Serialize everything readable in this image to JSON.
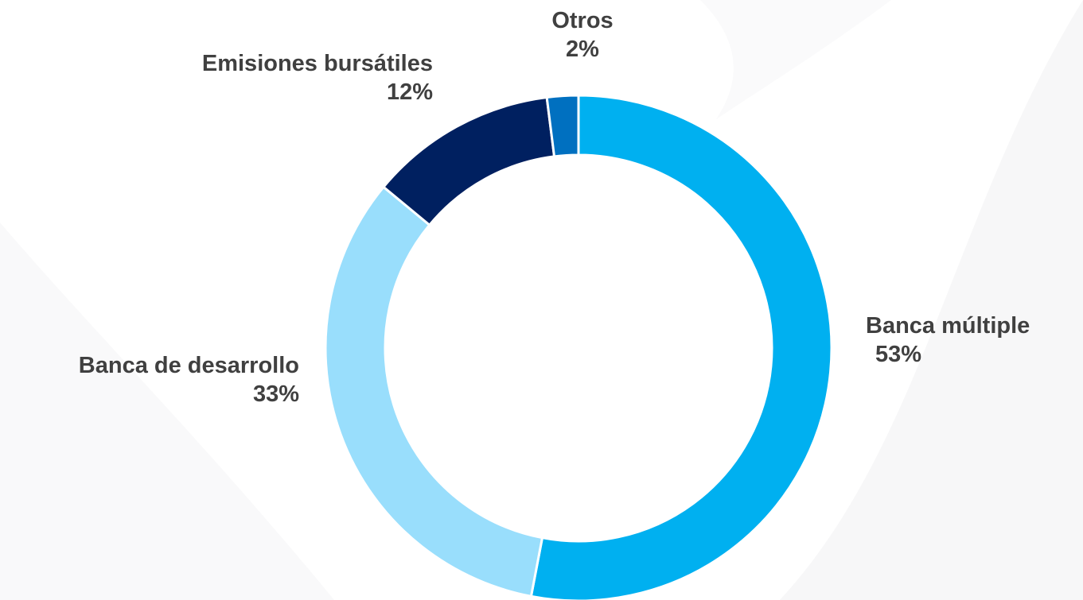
{
  "chart_data": {
    "type": "pie",
    "donut": true,
    "title": "",
    "legend": "none",
    "slices": [
      {
        "label": "Banca múltiple",
        "value": 53,
        "display": "53%",
        "color": "#00B0F0"
      },
      {
        "label": "Banca de desarrollo",
        "value": 33,
        "display": "33%",
        "color": "#99DEFC"
      },
      {
        "label": "Emisiones bursátiles",
        "value": 12,
        "display": "12%",
        "color": "#002060"
      },
      {
        "label": "Otros",
        "value": 2,
        "display": "2%",
        "color": "#0070C0"
      }
    ]
  }
}
